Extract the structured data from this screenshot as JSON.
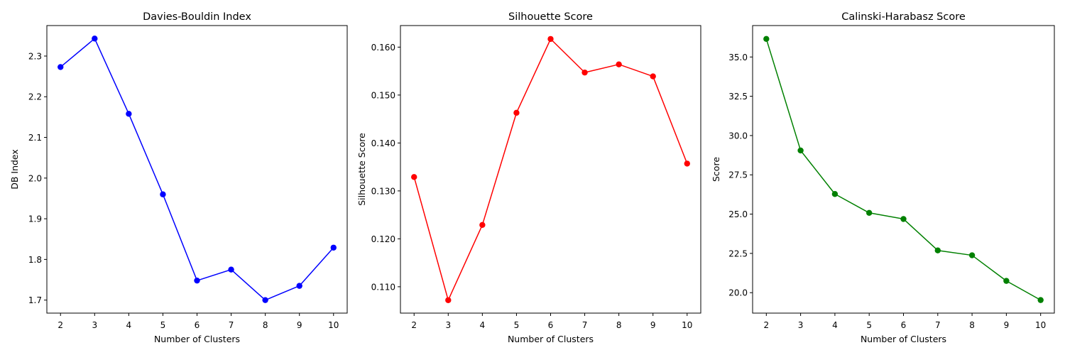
{
  "chart_data": [
    {
      "type": "line",
      "title": "Davies-Bouldin Index",
      "xlabel": "Number of Clusters",
      "ylabel": "DB Index",
      "color": "#0000ff",
      "marker": "circle",
      "grid": false,
      "x": [
        2,
        3,
        4,
        5,
        6,
        7,
        8,
        9,
        10
      ],
      "y": [
        2.273,
        2.343,
        2.158,
        1.96,
        1.748,
        1.775,
        1.7,
        1.735,
        1.829
      ],
      "xlim": [
        1.6,
        10.4
      ],
      "ylim": [
        1.668,
        2.375
      ],
      "xticks": [
        2,
        3,
        4,
        5,
        6,
        7,
        8,
        9,
        10
      ],
      "yticks": [
        1.7,
        1.8,
        1.9,
        2.0,
        2.1,
        2.2,
        2.3
      ],
      "ytick_labels": [
        "1.7",
        "1.8",
        "1.9",
        "2.0",
        "2.1",
        "2.2",
        "2.3"
      ]
    },
    {
      "type": "line",
      "title": "Silhouette Score",
      "xlabel": "Number of Clusters",
      "ylabel": "Silhouette Score",
      "color": "#ff0000",
      "marker": "circle",
      "grid": false,
      "x": [
        2,
        3,
        4,
        5,
        6,
        7,
        8,
        9,
        10
      ],
      "y": [
        0.1329,
        0.1072,
        0.1229,
        0.1463,
        0.1617,
        0.1547,
        0.1564,
        0.1539,
        0.1357
      ],
      "xlim": [
        1.6,
        10.4
      ],
      "ylim": [
        0.1045,
        0.1645
      ],
      "xticks": [
        2,
        3,
        4,
        5,
        6,
        7,
        8,
        9,
        10
      ],
      "yticks": [
        0.11,
        0.12,
        0.13,
        0.14,
        0.15,
        0.16
      ],
      "ytick_labels": [
        "0.110",
        "0.120",
        "0.130",
        "0.140",
        "0.150",
        "0.160"
      ]
    },
    {
      "type": "line",
      "title": "Calinski-Harabasz Score",
      "xlabel": "Number of Clusters",
      "ylabel": "Score",
      "color": "#008000",
      "marker": "circle",
      "grid": false,
      "x": [
        2,
        3,
        4,
        5,
        6,
        7,
        8,
        9,
        10
      ],
      "y": [
        36.15,
        29.05,
        26.28,
        25.08,
        24.69,
        22.69,
        22.38,
        20.75,
        19.53
      ],
      "xlim": [
        1.6,
        10.4
      ],
      "ylim": [
        18.7,
        37.0
      ],
      "xticks": [
        2,
        3,
        4,
        5,
        6,
        7,
        8,
        9,
        10
      ],
      "yticks": [
        20.0,
        22.5,
        25.0,
        27.5,
        30.0,
        32.5,
        35.0
      ],
      "ytick_labels": [
        "20.0",
        "22.5",
        "25.0",
        "27.5",
        "30.0",
        "32.5",
        "35.0"
      ]
    }
  ]
}
